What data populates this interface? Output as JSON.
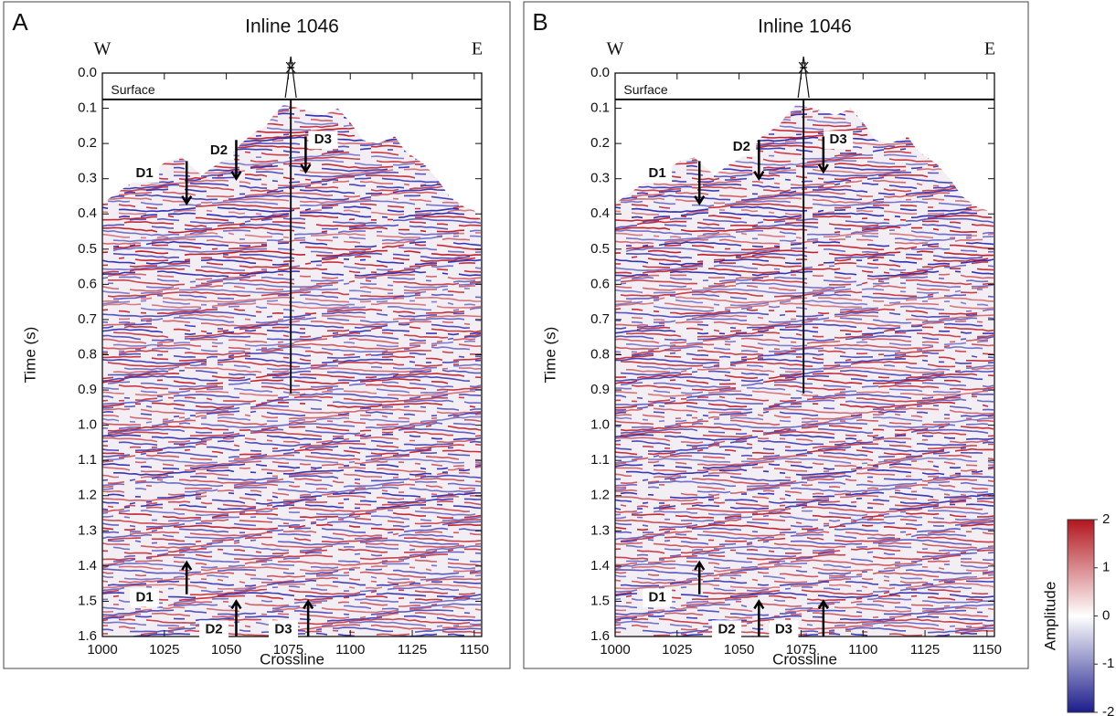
{
  "chart_data": [
    {
      "type": "seismic",
      "panel": "A",
      "title": "Inline 1046",
      "west": "W",
      "east": "E",
      "x_label": "Crossline",
      "y_label": "Time (s)",
      "xlim": [
        1000,
        1153
      ],
      "ylim": [
        1.6,
        0
      ],
      "xticks": [
        1000,
        1025,
        1050,
        1075,
        1100,
        1125,
        1150
      ],
      "yticks": [
        {
          "value": 0,
          "label": "0.0"
        },
        0.1,
        0.2,
        0.3,
        0.4,
        0.5,
        0.6,
        0.7,
        0.8,
        0.9,
        {
          "value": 1,
          "label": "1.0"
        },
        1.1,
        1.2,
        1.3,
        1.4,
        1.5,
        1.6
      ],
      "annotations": [
        "Surface",
        "D1",
        "D2",
        "D3",
        "D1",
        "D2",
        "D3"
      ]
    },
    {
      "type": "seismic",
      "panel": "B",
      "title": "Inline 1046",
      "west": "W",
      "east": "E",
      "x_label": "Crossline",
      "y_label": "Time (s)",
      "xlim": [
        1000,
        1153
      ],
      "ylim": [
        1.6,
        0
      ],
      "xticks": [
        1000,
        1025,
        1050,
        1075,
        1100,
        1125,
        1150
      ],
      "yticks": [
        {
          "value": 0,
          "label": "0.0"
        },
        0.1,
        0.2,
        0.3,
        0.4,
        0.5,
        0.6,
        0.7,
        0.8,
        0.9,
        {
          "value": 1,
          "label": "1.0"
        },
        1.1,
        1.2,
        1.3,
        1.4,
        1.5,
        1.6
      ],
      "annotations": [
        "Surface",
        "D1",
        "D2",
        "D3",
        "D1",
        "D2",
        "D3"
      ]
    },
    {
      "type": "colorbar",
      "label": "Amplitude",
      "ylim": [
        -2,
        2
      ],
      "yticks": [
        -2,
        -1,
        0,
        1,
        2
      ],
      "colors": [
        "#1c1c8c",
        "#ffffff",
        "#b2161e"
      ]
    }
  ]
}
